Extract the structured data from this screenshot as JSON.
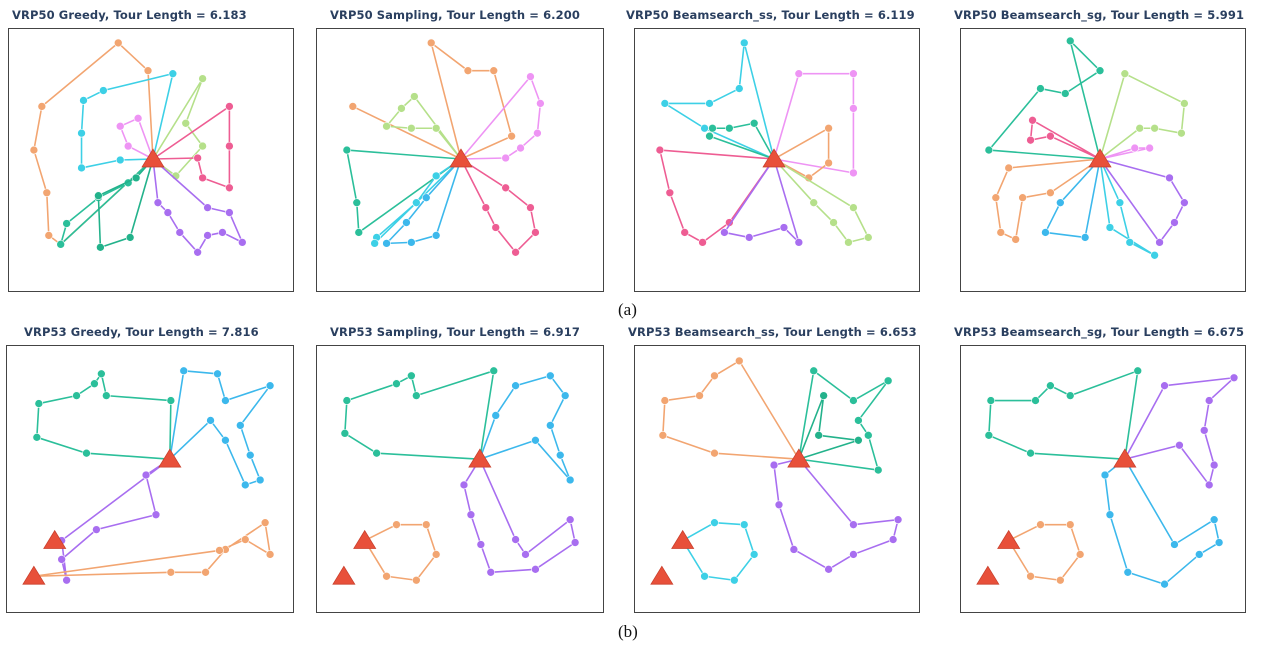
{
  "panels": [
    {
      "title": "VRP50  Greedy, Tour Length = 6.183"
    },
    {
      "title": "VRP50  Sampling, Tour Length = 6.200"
    },
    {
      "title": "VRP50  Beamsearch_ss, Tour Length = 6.119"
    },
    {
      "title": "VRP50  Beamsearch_sg, Tour Length = 5.991"
    },
    {
      "title": "VRP53  Greedy, Tour Length = 7.816"
    },
    {
      "title": "VRP53  Sampling, Tour Length = 6.917"
    },
    {
      "title": "VRP53  Beamsearch_ss, Tour Length = 6.653"
    },
    {
      "title": "VRP53  Beamsearch_sg, Tour Length = 6.675"
    }
  ],
  "captions": {
    "a": "(a)",
    "b": "(b)"
  },
  "colors": {
    "depot": "#e8503a",
    "orange": "#f2a571",
    "cyan": "#3dd0e6",
    "lime": "#b5e08a",
    "pink": "#ee5d93",
    "violet": "#ee94f4",
    "purple": "#a86ef0",
    "teal": "#2bbf9a",
    "blue": "#3cb8ec",
    "green": "#23b28b"
  }
}
